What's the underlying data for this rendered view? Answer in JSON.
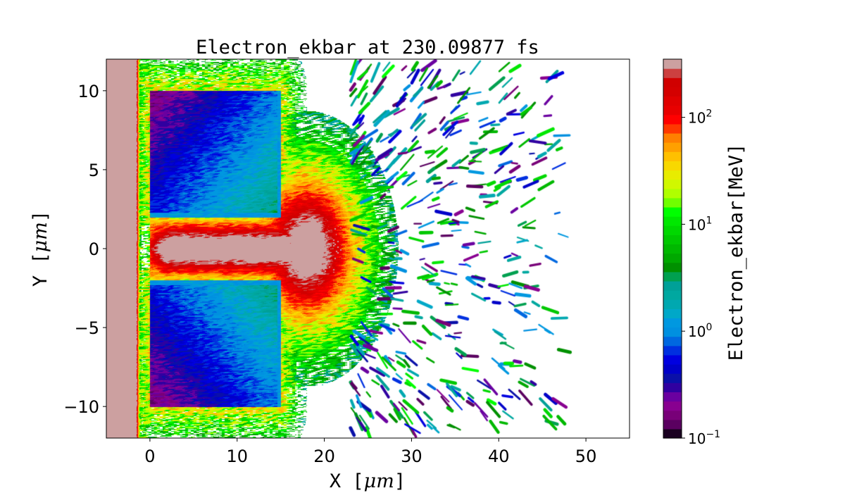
{
  "chart_data": {
    "type": "heatmap",
    "title": "Electron_ekbar at 230.09877 fs",
    "xlabel_text": "X",
    "ylabel_text": "Y",
    "unit": "μm",
    "xlim": [
      -5,
      55
    ],
    "ylim": [
      -12,
      12
    ],
    "xticks": [
      0,
      10,
      20,
      30,
      40,
      50
    ],
    "xtick_labels": [
      "0",
      "10",
      "20",
      "30",
      "40",
      "50"
    ],
    "yticks": [
      -10,
      -5,
      0,
      5,
      10
    ],
    "ytick_labels": [
      "−10",
      "−5",
      "0",
      "5",
      "10"
    ],
    "colorbar": {
      "label": "Electron_ekbar[MeV]",
      "scale": "log",
      "range": [
        0.1,
        350
      ],
      "ticks": [
        0.1,
        1,
        10,
        100
      ],
      "tick_bases": [
        "10",
        "10",
        "10",
        "10"
      ],
      "tick_exponents": [
        "−1",
        "0",
        "1",
        "2"
      ],
      "colors": [
        "#1a0020",
        "#5a0060",
        "#780078",
        "#880090",
        "#6a00a0",
        "#3000a0",
        "#0a10a8",
        "#0000c8",
        "#0000e0",
        "#0030e0",
        "#0068e0",
        "#0090e0",
        "#0098e0",
        "#00a8c8",
        "#00a8b0",
        "#00a8a0",
        "#00a098",
        "#00a050",
        "#009000",
        "#00a800",
        "#00b800",
        "#00c800",
        "#00d800",
        "#00e800",
        "#00ff00",
        "#70ff00",
        "#b0ff00",
        "#d0f800",
        "#e8ec00",
        "#f8d800",
        "#ffc000",
        "#ffa000",
        "#ff8000",
        "#ff3800",
        "#ff0000",
        "#e80000",
        "#e00000",
        "#d40000",
        "#d00000",
        "#cc4040",
        "#cca0a0"
      ]
    },
    "features": {
      "targets": [
        {
          "x": [
            0,
            15
          ],
          "y": [
            2,
            10
          ]
        },
        {
          "x": [
            0,
            15
          ],
          "y": [
            -10,
            -2
          ]
        }
      ],
      "target_energy_MeV": [
        0.2,
        1.5
      ],
      "channel_energy_MeV": [
        100,
        350
      ],
      "halo_energy_MeV": [
        5,
        50
      ]
    }
  }
}
